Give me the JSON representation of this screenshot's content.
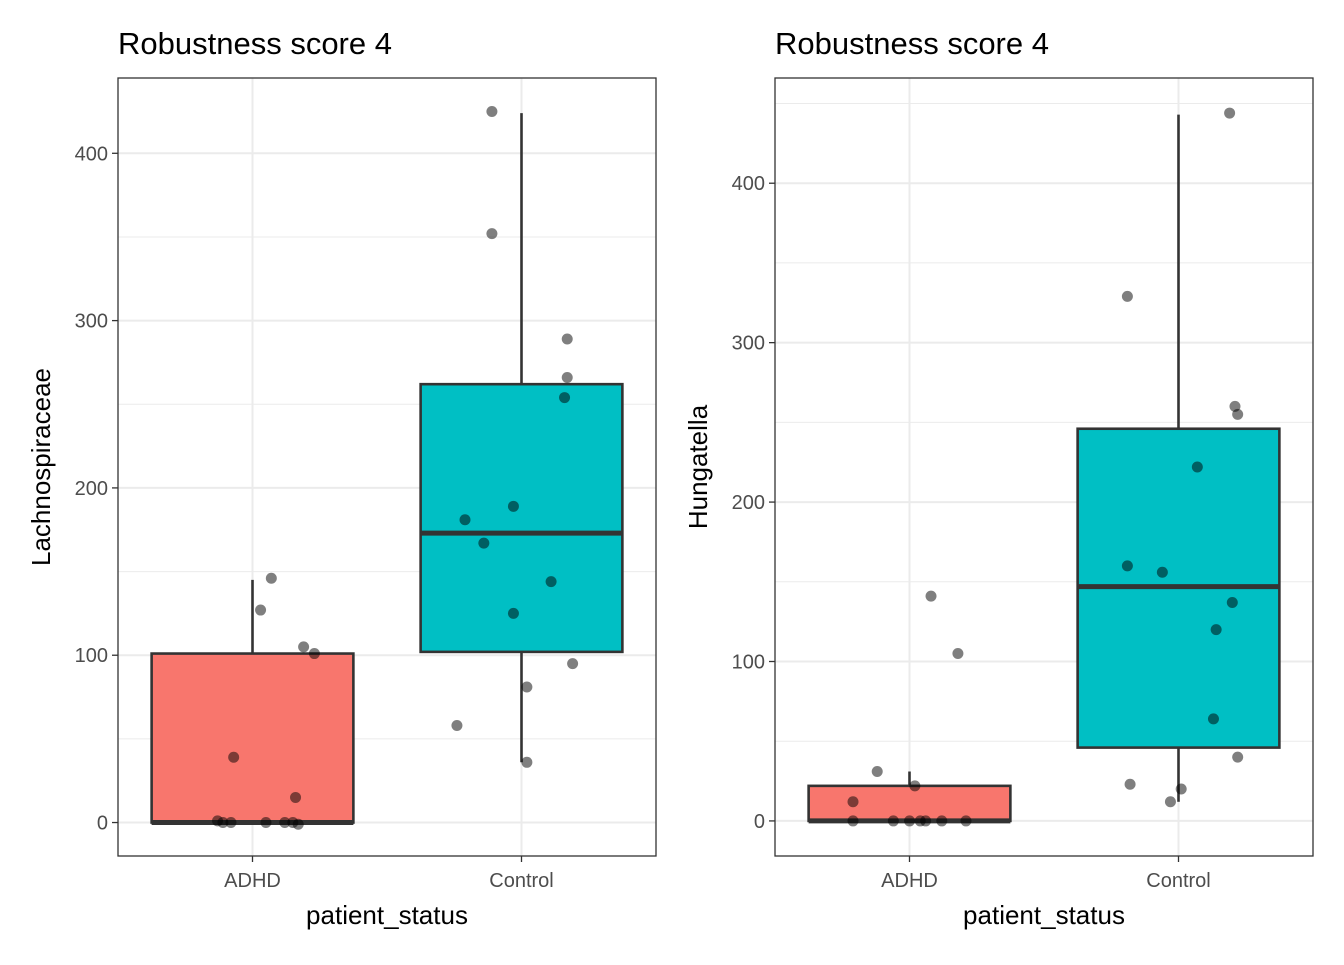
{
  "chart_data": [
    {
      "type": "box",
      "title": "Robustness score 4",
      "xlabel": "patient_status",
      "ylabel": "Lachnospiraceae",
      "ylim": [
        -20,
        445
      ],
      "yticks": [
        0,
        100,
        200,
        300,
        400
      ],
      "categories": [
        "ADHD",
        "Control"
      ],
      "box_colors": [
        "#F8766D",
        "#00BFC4"
      ],
      "grid": true,
      "boxes": [
        {
          "category": "ADHD",
          "min": 0,
          "q1": 0,
          "median": 0,
          "q3": 101,
          "max": 145
        },
        {
          "category": "Control",
          "min": 36,
          "q1": 102,
          "median": 173,
          "q3": 262,
          "max": 424
        }
      ],
      "points": [
        {
          "category": "ADHD",
          "jitter": 0.07,
          "y": 146
        },
        {
          "category": "ADHD",
          "jitter": 0.03,
          "y": 127
        },
        {
          "category": "ADHD",
          "jitter": 0.19,
          "y": 105
        },
        {
          "category": "ADHD",
          "jitter": 0.23,
          "y": 101
        },
        {
          "category": "ADHD",
          "jitter": -0.07,
          "y": 39
        },
        {
          "category": "ADHD",
          "jitter": 0.16,
          "y": 15
        },
        {
          "category": "ADHD",
          "jitter": -0.13,
          "y": 1
        },
        {
          "category": "ADHD",
          "jitter": -0.11,
          "y": 0
        },
        {
          "category": "ADHD",
          "jitter": -0.08,
          "y": 0
        },
        {
          "category": "ADHD",
          "jitter": 0.05,
          "y": 0
        },
        {
          "category": "ADHD",
          "jitter": 0.12,
          "y": 0
        },
        {
          "category": "ADHD",
          "jitter": 0.15,
          "y": 0
        },
        {
          "category": "ADHD",
          "jitter": 0.17,
          "y": -1
        },
        {
          "category": "Control",
          "jitter": -0.11,
          "y": 425
        },
        {
          "category": "Control",
          "jitter": -0.11,
          "y": 352
        },
        {
          "category": "Control",
          "jitter": 0.17,
          "y": 289
        },
        {
          "category": "Control",
          "jitter": 0.17,
          "y": 266
        },
        {
          "category": "Control",
          "jitter": 0.16,
          "y": 254
        },
        {
          "category": "Control",
          "jitter": -0.03,
          "y": 189
        },
        {
          "category": "Control",
          "jitter": -0.21,
          "y": 181
        },
        {
          "category": "Control",
          "jitter": -0.14,
          "y": 167
        },
        {
          "category": "Control",
          "jitter": 0.11,
          "y": 144
        },
        {
          "category": "Control",
          "jitter": -0.03,
          "y": 125
        },
        {
          "category": "Control",
          "jitter": 0.19,
          "y": 95
        },
        {
          "category": "Control",
          "jitter": 0.02,
          "y": 81
        },
        {
          "category": "Control",
          "jitter": -0.24,
          "y": 58
        },
        {
          "category": "Control",
          "jitter": 0.02,
          "y": 36
        }
      ]
    },
    {
      "type": "box",
      "title": "Robustness score 4",
      "xlabel": "patient_status",
      "ylabel": "Hungatella",
      "ylim": [
        -22,
        466
      ],
      "yticks": [
        0,
        100,
        200,
        300,
        400
      ],
      "categories": [
        "ADHD",
        "Control"
      ],
      "box_colors": [
        "#F8766D",
        "#00BFC4"
      ],
      "grid": true,
      "boxes": [
        {
          "category": "ADHD",
          "min": 0,
          "q1": 0,
          "median": 0,
          "q3": 22,
          "max": 31
        },
        {
          "category": "Control",
          "min": 12,
          "q1": 46,
          "median": 147,
          "q3": 246,
          "max": 443
        }
      ],
      "points": [
        {
          "category": "ADHD",
          "jitter": 0.08,
          "y": 141
        },
        {
          "category": "ADHD",
          "jitter": 0.18,
          "y": 105
        },
        {
          "category": "ADHD",
          "jitter": -0.12,
          "y": 31
        },
        {
          "category": "ADHD",
          "jitter": 0.02,
          "y": 22
        },
        {
          "category": "ADHD",
          "jitter": -0.21,
          "y": 12
        },
        {
          "category": "ADHD",
          "jitter": -0.21,
          "y": 0
        },
        {
          "category": "ADHD",
          "jitter": -0.06,
          "y": 0
        },
        {
          "category": "ADHD",
          "jitter": 0.0,
          "y": 0
        },
        {
          "category": "ADHD",
          "jitter": 0.04,
          "y": 0
        },
        {
          "category": "ADHD",
          "jitter": 0.06,
          "y": 0
        },
        {
          "category": "ADHD",
          "jitter": 0.12,
          "y": 0
        },
        {
          "category": "ADHD",
          "jitter": 0.21,
          "y": 0
        },
        {
          "category": "Control",
          "jitter": 0.19,
          "y": 444
        },
        {
          "category": "Control",
          "jitter": -0.19,
          "y": 329
        },
        {
          "category": "Control",
          "jitter": 0.21,
          "y": 260
        },
        {
          "category": "Control",
          "jitter": 0.22,
          "y": 255
        },
        {
          "category": "Control",
          "jitter": 0.07,
          "y": 222
        },
        {
          "category": "Control",
          "jitter": -0.19,
          "y": 160
        },
        {
          "category": "Control",
          "jitter": -0.06,
          "y": 156
        },
        {
          "category": "Control",
          "jitter": 0.2,
          "y": 137
        },
        {
          "category": "Control",
          "jitter": 0.14,
          "y": 120
        },
        {
          "category": "Control",
          "jitter": 0.13,
          "y": 64
        },
        {
          "category": "Control",
          "jitter": 0.22,
          "y": 40
        },
        {
          "category": "Control",
          "jitter": -0.18,
          "y": 23
        },
        {
          "category": "Control",
          "jitter": 0.01,
          "y": 20
        },
        {
          "category": "Control",
          "jitter": -0.03,
          "y": 12
        }
      ]
    }
  ]
}
